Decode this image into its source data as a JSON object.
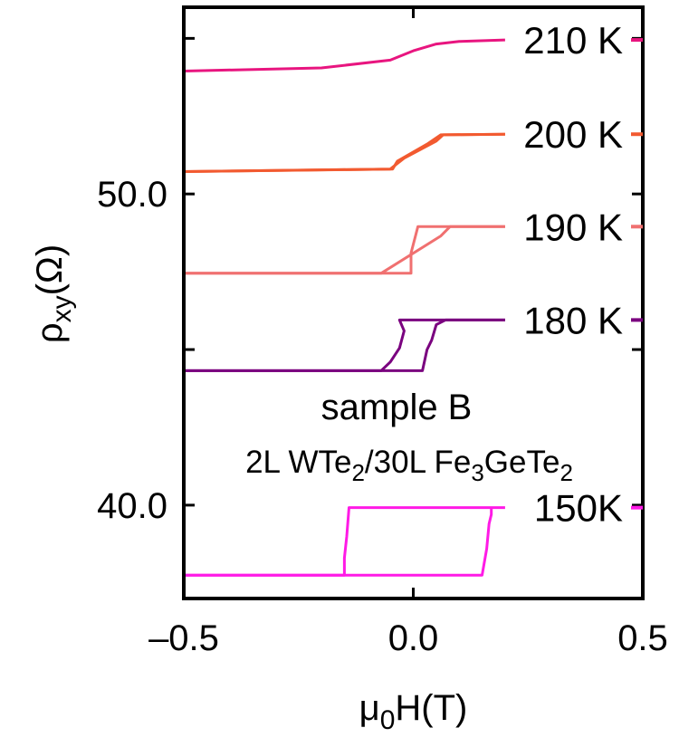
{
  "chart_data": {
    "type": "line",
    "xlabel": "μ0H(T)",
    "ylabel": "ρxy(Ω)",
    "xlim": [
      -0.5,
      0.5
    ],
    "ylim": [
      37.0,
      56.0
    ],
    "x_ticks": [
      {
        "value": -0.5,
        "label": "–0.5"
      },
      {
        "value": 0.0,
        "label": "0.0"
      },
      {
        "value": 0.5,
        "label": "0.5"
      }
    ],
    "y_ticks": [
      {
        "value": 40.0,
        "label": "40.0"
      },
      {
        "value": 50.0,
        "label": "50.0"
      }
    ],
    "y_minor_ticks": [
      45.0,
      55.0
    ],
    "annotation": {
      "line1": "sample B",
      "line2": "2L WTe2/30L Fe3GeTe2"
    },
    "series": [
      {
        "name": "150K",
        "label": "150K",
        "color": "#ff1ae6",
        "branches": [
          {
            "x": [
              -0.5,
              0.15,
              0.16,
              0.165,
              0.17,
              0.17
            ],
            "y": [
              37.75,
              37.75,
              38.6,
              39.4,
              39.7,
              39.92
            ]
          },
          {
            "x": [
              0.2,
              -0.14,
              -0.145,
              -0.15,
              -0.15,
              -0.5
            ],
            "y": [
              39.92,
              39.92,
              39.0,
              38.3,
              37.75,
              37.75
            ]
          }
        ]
      },
      {
        "name": "180 K",
        "label": "180 K",
        "color": "#7a007f",
        "branches": [
          {
            "x": [
              -0.5,
              -0.07,
              -0.05,
              -0.03,
              -0.02,
              -0.03,
              0.2
            ],
            "y": [
              44.32,
              44.32,
              44.6,
              45.05,
              45.6,
              45.95,
              45.95
            ]
          },
          {
            "x": [
              0.2,
              0.07,
              0.05,
              0.04,
              0.03,
              0.02,
              -0.5
            ],
            "y": [
              45.95,
              45.95,
              45.8,
              45.3,
              45.0,
              44.32,
              44.32
            ]
          }
        ]
      },
      {
        "name": "190 K",
        "label": "190 K",
        "color": "#f07070",
        "branches": [
          {
            "x": [
              -0.5,
              -0.07,
              0.06,
              0.08,
              0.2
            ],
            "y": [
              47.45,
              47.45,
              48.65,
              48.95,
              48.95
            ]
          },
          {
            "x": [
              0.2,
              0.01,
              -0.005,
              -0.005,
              -0.5
            ],
            "y": [
              48.95,
              48.95,
              48.1,
              47.45,
              47.45
            ]
          }
        ]
      },
      {
        "name": "200 K",
        "label": "200 K",
        "color": "#f25a30",
        "branches": [
          {
            "x": [
              -0.5,
              -0.05,
              -0.02,
              0.05,
              0.065,
              0.2
            ],
            "y": [
              50.72,
              50.8,
              51.15,
              51.7,
              51.9,
              51.92
            ]
          },
          {
            "x": [
              0.2,
              0.06,
              0.03,
              -0.035,
              -0.045,
              -0.5
            ],
            "y": [
              51.92,
              51.9,
              51.6,
              51.05,
              50.8,
              50.72
            ]
          }
        ]
      },
      {
        "name": "210 K",
        "label": "210 K",
        "color": "#e8157f",
        "branches": [
          {
            "x": [
              -0.5,
              -0.2,
              -0.05,
              0.0,
              0.05,
              0.1,
              0.2
            ],
            "y": [
              53.95,
              54.05,
              54.3,
              54.6,
              54.82,
              54.9,
              54.95
            ]
          }
        ]
      }
    ]
  }
}
